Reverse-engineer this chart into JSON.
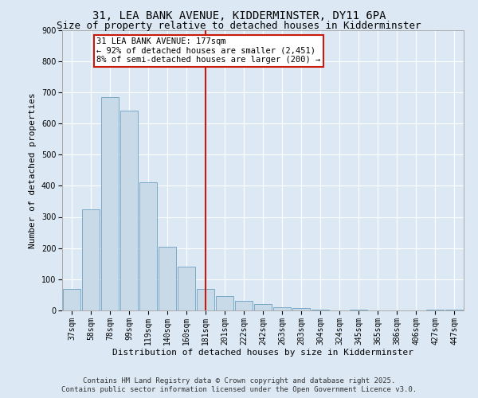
{
  "title_line1": "31, LEA BANK AVENUE, KIDDERMINSTER, DY11 6PA",
  "title_line2": "Size of property relative to detached houses in Kidderminster",
  "xlabel": "Distribution of detached houses by size in Kidderminster",
  "ylabel": "Number of detached properties",
  "categories": [
    "37sqm",
    "58sqm",
    "78sqm",
    "99sqm",
    "119sqm",
    "140sqm",
    "160sqm",
    "181sqm",
    "201sqm",
    "222sqm",
    "242sqm",
    "263sqm",
    "283sqm",
    "304sqm",
    "324sqm",
    "345sqm",
    "365sqm",
    "386sqm",
    "406sqm",
    "427sqm",
    "447sqm"
  ],
  "values": [
    70,
    325,
    685,
    640,
    410,
    205,
    140,
    70,
    45,
    30,
    20,
    10,
    7,
    3,
    0,
    3,
    0,
    0,
    0,
    3,
    3
  ],
  "bar_color": "#c8d9e8",
  "bar_edge_color": "#7aaac8",
  "highlight_bar_index": 7,
  "highlight_color": "#c8190c",
  "annotation_text": "31 LEA BANK AVENUE: 177sqm\n← 92% of detached houses are smaller (2,451)\n8% of semi-detached houses are larger (200) →",
  "annotation_box_color": "#c8190c",
  "ylim": [
    0,
    900
  ],
  "yticks": [
    0,
    100,
    200,
    300,
    400,
    500,
    600,
    700,
    800,
    900
  ],
  "background_color": "#dce9f5",
  "grid_color": "#ffffff",
  "footer_line1": "Contains HM Land Registry data © Crown copyright and database right 2025.",
  "footer_line2": "Contains public sector information licensed under the Open Government Licence v3.0.",
  "title_fontsize": 10,
  "subtitle_fontsize": 9,
  "axis_label_fontsize": 8,
  "tick_fontsize": 7,
  "annotation_fontsize": 7.5,
  "footer_fontsize": 6.5
}
